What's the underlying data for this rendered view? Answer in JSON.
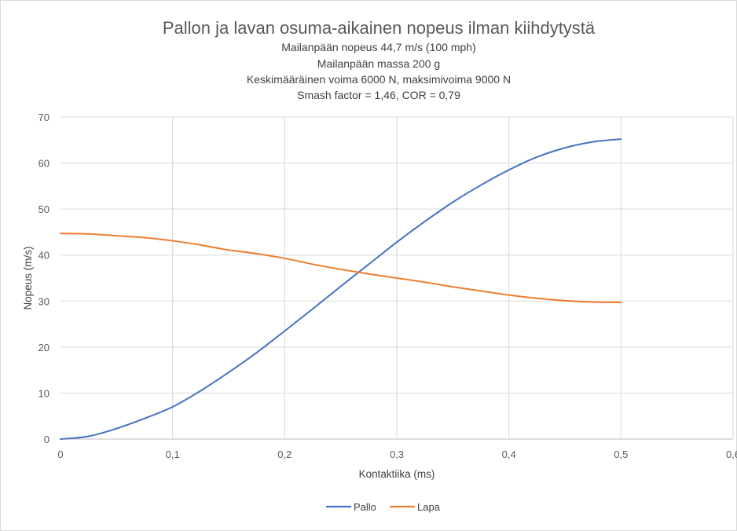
{
  "chart_data": {
    "type": "line",
    "title": "Pallon ja lavan osuma-aikainen nopeus ilman kiihdytystä",
    "subtitle_lines": [
      "Mailanpään nopeus 44,7 m/s  (100 mph)",
      "Mailanpään massa 200 g",
      "Keskimääräinen voima 6000 N, maksimivoima 9000 N",
      "Smash factor = 1,46, COR = 0,79"
    ],
    "xlabel": "Kontaktiika (ms)",
    "ylabel": "Nopeus  (m/s)",
    "xlim": [
      0,
      0.6
    ],
    "ylim": [
      0,
      70
    ],
    "x_ticks": [
      0,
      0.1,
      0.2,
      0.3,
      0.4,
      0.5,
      0.6
    ],
    "x_tick_labels": [
      "0",
      "0,1",
      "0,2",
      "0,3",
      "0,4",
      "0,5",
      "0,6"
    ],
    "y_ticks": [
      0,
      10,
      20,
      30,
      40,
      50,
      60,
      70
    ],
    "y_tick_labels": [
      "0",
      "10",
      "20",
      "30",
      "40",
      "50",
      "60",
      "70"
    ],
    "grid": true,
    "legend_position": "bottom",
    "series": [
      {
        "name": "Pallo",
        "color": "#4472c4",
        "x": [
          0,
          0.025,
          0.05,
          0.075,
          0.1,
          0.125,
          0.15,
          0.175,
          0.2,
          0.225,
          0.25,
          0.275,
          0.3,
          0.325,
          0.35,
          0.375,
          0.4,
          0.425,
          0.45,
          0.475,
          0.5
        ],
        "y": [
          0,
          0.6,
          2.3,
          4.5,
          7.0,
          10.5,
          14.5,
          18.8,
          23.5,
          28.3,
          33.2,
          38.0,
          42.8,
          47.3,
          51.5,
          55.2,
          58.5,
          61.3,
          63.3,
          64.6,
          65.2
        ]
      },
      {
        "name": "Lapa",
        "color": "#ed7d31",
        "x": [
          0,
          0.025,
          0.05,
          0.075,
          0.1,
          0.125,
          0.15,
          0.175,
          0.2,
          0.225,
          0.25,
          0.275,
          0.3,
          0.325,
          0.35,
          0.375,
          0.4,
          0.425,
          0.45,
          0.475,
          0.5
        ],
        "y": [
          44.7,
          44.6,
          44.2,
          43.8,
          43.1,
          42.2,
          41.1,
          40.3,
          39.3,
          38.0,
          36.9,
          35.9,
          35.0,
          34.1,
          33.1,
          32.2,
          31.3,
          30.6,
          30.1,
          29.8,
          29.7
        ]
      }
    ]
  }
}
